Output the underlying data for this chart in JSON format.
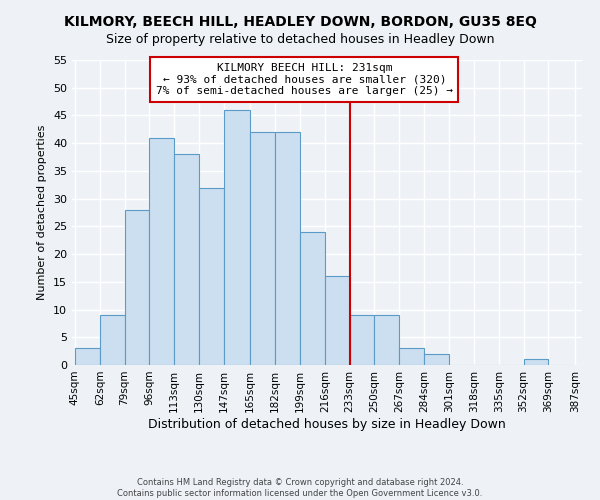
{
  "title": "KILMORY, BEECH HILL, HEADLEY DOWN, BORDON, GU35 8EQ",
  "subtitle": "Size of property relative to detached houses in Headley Down",
  "xlabel": "Distribution of detached houses by size in Headley Down",
  "ylabel": "Number of detached properties",
  "bin_edges": [
    45,
    62,
    79,
    96,
    113,
    130,
    147,
    165,
    182,
    199,
    216,
    233,
    250,
    267,
    284,
    301,
    318,
    335,
    352,
    369,
    387
  ],
  "bin_labels": [
    "45sqm",
    "62sqm",
    "79sqm",
    "96sqm",
    "113sqm",
    "130sqm",
    "147sqm",
    "165sqm",
    "182sqm",
    "199sqm",
    "216sqm",
    "233sqm",
    "250sqm",
    "267sqm",
    "284sqm",
    "301sqm",
    "318sqm",
    "335sqm",
    "352sqm",
    "369sqm",
    "387sqm"
  ],
  "counts": [
    3,
    9,
    28,
    41,
    38,
    32,
    46,
    42,
    42,
    24,
    16,
    9,
    9,
    3,
    2,
    0,
    0,
    0,
    1,
    0
  ],
  "bar_color": "#ccdff0",
  "bar_edge_color": "#5b9bc8",
  "vline_x": 233,
  "vline_color": "#cc0000",
  "annotation_title": "KILMORY BEECH HILL: 231sqm",
  "annotation_line1": "← 93% of detached houses are smaller (320)",
  "annotation_line2": "7% of semi-detached houses are larger (25) →",
  "ylim": [
    0,
    55
  ],
  "yticks": [
    0,
    5,
    10,
    15,
    20,
    25,
    30,
    35,
    40,
    45,
    50,
    55
  ],
  "footer1": "Contains HM Land Registry data © Crown copyright and database right 2024.",
  "footer2": "Contains public sector information licensed under the Open Government Licence v3.0.",
  "background_color": "#eef2f7",
  "grid_color": "#ffffff",
  "title_fontsize": 10,
  "subtitle_fontsize": 9,
  "ylabel_fontsize": 8,
  "xlabel_fontsize": 9,
  "annotation_fontsize": 8,
  "tick_fontsize": 7.5,
  "ytick_fontsize": 8,
  "footer_fontsize": 6
}
